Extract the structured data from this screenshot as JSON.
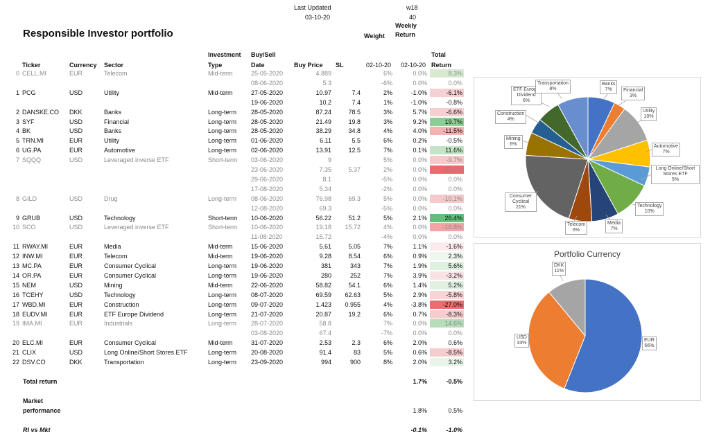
{
  "header": {
    "last_updated_label": "Last Updated",
    "last_updated_date": "03-10-20",
    "week_code": "w18",
    "week_num": "40",
    "weekly_return_label": "Weekly Return",
    "weight_label": "Weight",
    "title": "Responsible Investor portfolio"
  },
  "columns": {
    "ticker": "Ticker",
    "currency": "Currency",
    "sector": "Sector",
    "type_l1": "Investment",
    "type_l2": "Type",
    "date_l1": "Buy/Sell",
    "date_l2": "Date",
    "price": "Buy Price",
    "sl": "SL",
    "weight_date": "02-10-20",
    "weekly_date": "02-10-20",
    "total_l1": "Total",
    "total_l2": "Return"
  },
  "rows": [
    {
      "idx": "0",
      "ticker": "CELL.MI",
      "cur": "EUR",
      "sector": "Telecom",
      "type": "Mid-term",
      "date": "25-05-2020",
      "price": "4.889",
      "sl": "",
      "w": "6%",
      "wk": "0.0%",
      "tot": "8.3%",
      "grey": true,
      "bg": "#d9ead3"
    },
    {
      "idx": "",
      "ticker": "",
      "cur": "",
      "sector": "",
      "type": "",
      "date": "08-06-2020",
      "price": "5.3",
      "sl": "",
      "w": "-6%",
      "wk": "0.0%",
      "tot": "0.0%",
      "grey": true,
      "bg": ""
    },
    {
      "idx": "1",
      "ticker": "PCG",
      "cur": "USD",
      "sector": "Utility",
      "type": "Mid-term",
      "date": "27-05-2020",
      "price": "10.97",
      "sl": "7.4",
      "w": "2%",
      "wk": "-1.0%",
      "tot": "-6.1%",
      "grey": false,
      "bg": "#f6d0d2"
    },
    {
      "idx": "",
      "ticker": "",
      "cur": "",
      "sector": "",
      "type": "",
      "date": "19-06-2020",
      "price": "10.2",
      "sl": "7.4",
      "w": "1%",
      "wk": "-1.0%",
      "tot": "-0.8%",
      "grey": false,
      "bg": ""
    },
    {
      "idx": "2",
      "ticker": "DANSKE.CO",
      "cur": "DKK",
      "sector": "Banks",
      "type": "Long-term",
      "date": "28-05-2020",
      "price": "87.24",
      "sl": "78.5",
      "w": "3%",
      "wk": "5.7%",
      "tot": "-6.6%",
      "grey": false,
      "bg": "#f6cfd1"
    },
    {
      "idx": "3",
      "ticker": "SYF",
      "cur": "USD",
      "sector": "Financial",
      "type": "Long-term",
      "date": "28-05-2020",
      "price": "21.49",
      "sl": "19.8",
      "w": "3%",
      "wk": "9.2%",
      "tot": "19.7%",
      "grey": false,
      "bg": "#8ccf95"
    },
    {
      "idx": "4",
      "ticker": "BK",
      "cur": "USD",
      "sector": "Banks",
      "type": "Long-term",
      "date": "28-05-2020",
      "price": "38.29",
      "sl": "34.8",
      "w": "4%",
      "wk": "4.0%",
      "tot": "-11.5%",
      "grey": false,
      "bg": "#f3b3b5"
    },
    {
      "idx": "5",
      "ticker": "TRN.MI",
      "cur": "EUR",
      "sector": "Utility",
      "type": "Long-term",
      "date": "01-06-2020",
      "price": "6.11",
      "sl": "5.5",
      "w": "6%",
      "wk": "0.2%",
      "tot": "-0.5%",
      "grey": false,
      "bg": ""
    },
    {
      "idx": "6",
      "ticker": "UG.PA",
      "cur": "EUR",
      "sector": "Automotive",
      "type": "Long-term",
      "date": "02-06-2020",
      "price": "13.91",
      "sl": "12.5",
      "w": "7%",
      "wk": "0.1%",
      "tot": "11.6%",
      "grey": false,
      "bg": "#c3e4c6"
    },
    {
      "idx": "7",
      "ticker": "SQQQ",
      "cur": "USD",
      "sector": "Leveraged inverse ETF",
      "type": "Short-term",
      "date": "03-06-2020",
      "price": "9",
      "sl": "",
      "w": "5%",
      "wk": "0.0%",
      "tot": "-9.7%",
      "grey": true,
      "bg": "#f6c9cb"
    },
    {
      "idx": "",
      "ticker": "",
      "cur": "",
      "sector": "",
      "type": "",
      "date": "23-06-2020",
      "price": "7.35",
      "sl": "5.37",
      "w": "2%",
      "wk": "0.0%",
      "tot": "-28.1%",
      "grey": true,
      "bg": "#ec6a6e"
    },
    {
      "idx": "",
      "ticker": "",
      "cur": "",
      "sector": "",
      "type": "",
      "date": "29-06-2020",
      "price": "8.1",
      "sl": "",
      "w": "-5%",
      "wk": "0.0%",
      "tot": "0.0%",
      "grey": true,
      "bg": ""
    },
    {
      "idx": "",
      "ticker": "",
      "cur": "",
      "sector": "",
      "type": "",
      "date": "17-08-2020",
      "price": "5.34",
      "sl": "",
      "w": "-2%",
      "wk": "0.0%",
      "tot": "0.0%",
      "grey": true,
      "bg": ""
    },
    {
      "idx": "8",
      "ticker": "GILD",
      "cur": "USD",
      "sector": "Drug",
      "type": "Long-term",
      "date": "08-06-2020",
      "price": "76.98",
      "sl": "69.3",
      "w": "5%",
      "wk": "0.0%",
      "tot": "-10.1%",
      "grey": true,
      "bg": "#f6c9cb"
    },
    {
      "idx": "",
      "ticker": "",
      "cur": "",
      "sector": "",
      "type": "",
      "date": "12-08-2020",
      "price": "69.3",
      "sl": "",
      "w": "-5%",
      "wk": "0.0%",
      "tot": "0.0%",
      "grey": true,
      "bg": ""
    },
    {
      "idx": "9",
      "ticker": "GRUB",
      "cur": "USD",
      "sector": "Technology",
      "type": "Short-term",
      "date": "10-06-2020",
      "price": "56.22",
      "sl": "51.2",
      "w": "5%",
      "wk": "2.1%",
      "tot": "26.4%",
      "grey": false,
      "bg": "#63be7b"
    },
    {
      "idx": "10",
      "ticker": "SCO",
      "cur": "USD",
      "sector": "Leveraged inverse ETF",
      "type": "Short-term",
      "date": "10-06-2020",
      "price": "19.18",
      "sl": "15.72",
      "w": "4%",
      "wk": "0.0%",
      "tot": "-18.8%",
      "grey": true,
      "bg": "#f2a4a7"
    },
    {
      "idx": "",
      "ticker": "",
      "cur": "",
      "sector": "",
      "type": "",
      "date": "11-08-2020",
      "price": "15.72",
      "sl": "",
      "w": "-4%",
      "wk": "0.0%",
      "tot": "0.0%",
      "grey": true,
      "bg": ""
    },
    {
      "idx": "11",
      "ticker": "RWAY.MI",
      "cur": "EUR",
      "sector": "Media",
      "type": "Mid-term",
      "date": "15-06-2020",
      "price": "5.61",
      "sl": "5.05",
      "w": "7%",
      "wk": "1.1%",
      "tot": "-1.6%",
      "grey": false,
      "bg": "#fbeaeb"
    },
    {
      "idx": "12",
      "ticker": "INW.MI",
      "cur": "EUR",
      "sector": "Telecom",
      "type": "Mid-term",
      "date": "19-06-2020",
      "price": "9.28",
      "sl": "8.54",
      "w": "6%",
      "wk": "0.9%",
      "tot": "2.3%",
      "grey": false,
      "bg": "#eef7ef"
    },
    {
      "idx": "13",
      "ticker": "MC.PA",
      "cur": "EUR",
      "sector": "Consumer Cyclical",
      "type": "Long-term",
      "date": "19-06-2020",
      "price": "381",
      "sl": "343",
      "w": "7%",
      "wk": "1.9%",
      "tot": "5.6%",
      "grey": false,
      "bg": "#dff0e1"
    },
    {
      "idx": "14",
      "ticker": "OR.PA",
      "cur": "EUR",
      "sector": "Consumer Cyclical",
      "type": "Long-term",
      "date": "19-06-2020",
      "price": "280",
      "sl": "252",
      "w": "7%",
      "wk": "3.9%",
      "tot": "-3.2%",
      "grey": false,
      "bg": "#fae3e4"
    },
    {
      "idx": "15",
      "ticker": "NEM",
      "cur": "USD",
      "sector": "Mining",
      "type": "Mid-term",
      "date": "22-06-2020",
      "price": "58.82",
      "sl": "54.1",
      "w": "6%",
      "wk": "1.4%",
      "tot": "5.2%",
      "grey": false,
      "bg": "#e0f1e2"
    },
    {
      "idx": "16",
      "ticker": "TCEHY",
      "cur": "USD",
      "sector": "Technology",
      "type": "Long-term",
      "date": "08-07-2020",
      "price": "69.59",
      "sl": "62.63",
      "w": "5%",
      "wk": "2.9%",
      "tot": "-5.8%",
      "grey": false,
      "bg": "#f7d4d5"
    },
    {
      "idx": "17",
      "ticker": "WBD.MI",
      "cur": "EUR",
      "sector": "Construction",
      "type": "Long-term",
      "date": "09-07-2020",
      "price": "1.423",
      "sl": "0.955",
      "w": "4%",
      "wk": "-3.8%",
      "tot": "-27.0%",
      "grey": false,
      "bg": "#ec6c70"
    },
    {
      "idx": "18",
      "ticker": "EUDV.MI",
      "cur": "EUR",
      "sector": "ETF Europe Dividend",
      "type": "Long-term",
      "date": "21-07-2020",
      "price": "20.87",
      "sl": "19.2",
      "w": "6%",
      "wk": "0.7%",
      "tot": "-8.3%",
      "grey": false,
      "bg": "#f6cdcf"
    },
    {
      "idx": "19",
      "ticker": "IMA.MI",
      "cur": "EUR",
      "sector": "Industrials",
      "type": "Long-term",
      "date": "28-07-2020",
      "price": "58.8",
      "sl": "",
      "w": "7%",
      "wk": "0.0%",
      "tot": "14.6%",
      "grey": true,
      "bg": "#b4ddb8"
    },
    {
      "idx": "",
      "ticker": "",
      "cur": "",
      "sector": "",
      "type": "",
      "date": "03-08-2020",
      "price": "67.4",
      "sl": "",
      "w": "-7%",
      "wk": "0.0%",
      "tot": "0.0%",
      "grey": true,
      "bg": ""
    },
    {
      "idx": "20",
      "ticker": "ELC.MI",
      "cur": "EUR",
      "sector": "Consumer Cyclical",
      "type": "Mid-term",
      "date": "31-07-2020",
      "price": "2.53",
      "sl": "2.3",
      "w": "6%",
      "wk": "2.0%",
      "tot": "0.6%",
      "grey": false,
      "bg": ""
    },
    {
      "idx": "21",
      "ticker": "CLIX",
      "cur": "USD",
      "sector": "Long Online/Short Stores ETF",
      "type": "Long-term",
      "date": "20-08-2020",
      "price": "91.4",
      "sl": "83",
      "w": "5%",
      "wk": "0.6%",
      "tot": "-8.5%",
      "grey": false,
      "bg": "#f6cdcf"
    },
    {
      "idx": "22",
      "ticker": "DSV.CO",
      "cur": "DKK",
      "sector": "Transportation",
      "type": "Long-term",
      "date": "23-09-2020",
      "price": "994",
      "sl": "900",
      "w": "8%",
      "wk": "2.0%",
      "tot": "3.2%",
      "grey": false,
      "bg": "#e9f5ea"
    }
  ],
  "summary": {
    "total_label": "Total return",
    "total_wk": "1.7%",
    "total_tot": "-0.5%",
    "market_l1": "Market",
    "market_l2": "performance",
    "market_wk": "1.8%",
    "market_tot": "0.5%",
    "ri_label": "RI vs Mkt",
    "ri_wk": "-0.1%",
    "ri_tot": "-1.0%"
  },
  "chart_data": [
    {
      "type": "pie",
      "title": "",
      "slices": [
        {
          "name": "Banks",
          "pct": 7,
          "color": "#4472c4",
          "line1": "Banks",
          "line2": "7%"
        },
        {
          "name": "Financial",
          "pct": 3,
          "color": "#ed7d31",
          "line1": "Financial",
          "line2": "3%"
        },
        {
          "name": "Utility",
          "pct": 10,
          "color": "#a5a5a5",
          "line1": "Utility",
          "line2": "10%"
        },
        {
          "name": "Automotive",
          "pct": 7,
          "color": "#ffc000",
          "line1": "Automotive",
          "line2": "7%"
        },
        {
          "name": "Long Online/Short Stores ETF",
          "pct": 5,
          "color": "#5b9bd5",
          "line1": "Long Online/Short Stores ETF",
          "line2": "5%"
        },
        {
          "name": "Technology",
          "pct": 10,
          "color": "#70ad47",
          "line1": "Technology",
          "line2": "10%"
        },
        {
          "name": "Media",
          "pct": 7,
          "color": "#264478",
          "line1": "Media",
          "line2": "7%"
        },
        {
          "name": "Telecom",
          "pct": 6,
          "color": "#9e480e",
          "line1": "Telecom",
          "line2": "6%"
        },
        {
          "name": "Consumer Cyclical",
          "pct": 21,
          "color": "#636363",
          "line1": "Consumer Cyclical",
          "line2": "21%"
        },
        {
          "name": "Mining",
          "pct": 6,
          "color": "#997300",
          "line1": "Mining",
          "line2": "6%"
        },
        {
          "name": "Construction",
          "pct": 4,
          "color": "#255e91",
          "line1": "Construction",
          "line2": "4%"
        },
        {
          "name": "ETF Europe Dividend",
          "pct": 6,
          "color": "#43682b",
          "line1": "ETF Europe Dividend",
          "line2": "6%"
        },
        {
          "name": "Transportation",
          "pct": 8,
          "color": "#698ed0",
          "line1": "Transportation",
          "line2": "8%"
        }
      ]
    },
    {
      "type": "pie",
      "title": "Portfolio Currency",
      "slices": [
        {
          "name": "EUR",
          "pct": 56,
          "color": "#4472c4",
          "line1": "EUR",
          "line2": "56%"
        },
        {
          "name": "USD",
          "pct": 33,
          "color": "#ed7d31",
          "line1": "USD",
          "line2": "33%"
        },
        {
          "name": "DKK",
          "pct": 11,
          "color": "#a5a5a5",
          "line1": "DKK",
          "line2": "11%"
        }
      ]
    }
  ]
}
